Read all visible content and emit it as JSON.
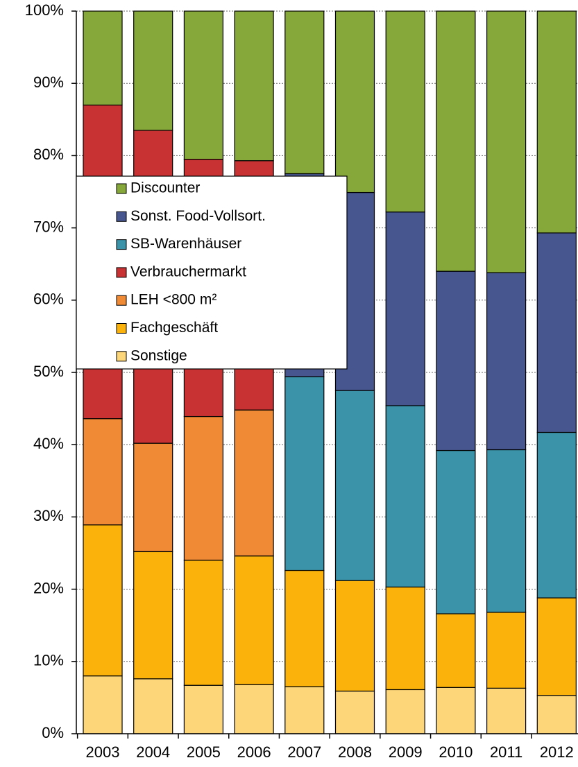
{
  "chart_data": {
    "type": "stacked_bar",
    "categories": [
      "2003",
      "2004",
      "2005",
      "2006",
      "2007",
      "2008",
      "2009",
      "2010",
      "2011",
      "2012"
    ],
    "series": [
      {
        "name": "Sonstige",
        "color": "#fdd67a",
        "values": [
          8.0,
          7.6,
          6.7,
          6.8,
          6.5,
          5.9,
          6.1,
          6.4,
          6.3,
          5.3
        ]
      },
      {
        "name": "Fachgeschäft",
        "color": "#fbb30b",
        "values": [
          20.9,
          17.6,
          17.3,
          17.8,
          16.1,
          15.3,
          14.2,
          10.2,
          10.5,
          13.5
        ]
      },
      {
        "name": "LEH <800 m²",
        "color": "#f08a35",
        "values": [
          14.7,
          15.0,
          19.9,
          20.2,
          0,
          0,
          0,
          0,
          0,
          0
        ]
      },
      {
        "name": "Verbrauchermarkt",
        "color": "#c83232",
        "values": [
          43.4,
          43.3,
          35.6,
          34.5,
          0,
          0,
          0,
          0,
          0,
          0
        ]
      },
      {
        "name": "SB-Warenhäuser",
        "color": "#3a93a8",
        "values": [
          0,
          0,
          0,
          0,
          26.8,
          26.3,
          25.1,
          22.6,
          22.5,
          22.9
        ]
      },
      {
        "name": "Sonst. Food-Vollsort.",
        "color": "#47568f",
        "values": [
          0,
          0,
          0,
          0,
          28.1,
          27.4,
          26.8,
          24.8,
          24.5,
          27.6
        ]
      },
      {
        "name": "Discounter",
        "color": "#86a83a",
        "values": [
          13.0,
          16.5,
          20.5,
          20.7,
          22.5,
          25.1,
          27.8,
          36.0,
          36.2,
          30.7
        ]
      }
    ],
    "ylim": [
      0,
      100
    ],
    "yticks": [
      {
        "value": 0,
        "label": "0%"
      },
      {
        "value": 10,
        "label": "10%"
      },
      {
        "value": 20,
        "label": "20%"
      },
      {
        "value": 30,
        "label": "30%"
      },
      {
        "value": 40,
        "label": "40%"
      },
      {
        "value": 50,
        "label": "50%"
      },
      {
        "value": 60,
        "label": "60%"
      },
      {
        "value": 70,
        "label": "70%"
      },
      {
        "value": 80,
        "label": "80%"
      },
      {
        "value": 90,
        "label": "90%"
      },
      {
        "value": 100,
        "label": "100%"
      }
    ],
    "grid": true,
    "legend": "upper left"
  }
}
